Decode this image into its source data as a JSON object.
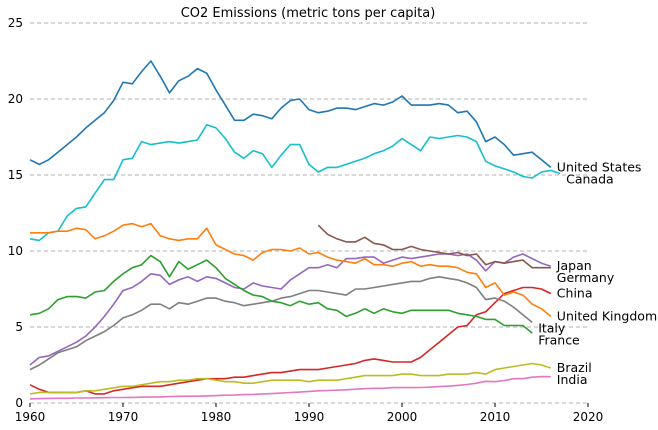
{
  "chart_data": {
    "type": "line",
    "title": "CO2 Emissions (metric tons per capita)",
    "xlabel": "",
    "ylabel": "",
    "xlim": [
      1960,
      2020
    ],
    "ylim": [
      0,
      25
    ],
    "x_ticks": [
      1960,
      1970,
      1980,
      1990,
      2000,
      2010,
      2020
    ],
    "y_ticks": [
      0,
      5,
      10,
      15,
      20,
      25
    ],
    "grid": "horizontal-dashed",
    "legend": "end-labels-right",
    "series": [
      {
        "name": "United States",
        "color": "#1f77b4",
        "x_start": 1960,
        "values": [
          16.0,
          15.7,
          16.0,
          16.5,
          17.0,
          17.5,
          18.1,
          18.6,
          19.1,
          19.9,
          21.1,
          21.0,
          21.8,
          22.5,
          21.5,
          20.4,
          21.2,
          21.5,
          22.0,
          21.7,
          20.6,
          19.6,
          18.6,
          18.6,
          19.0,
          18.9,
          18.7,
          19.4,
          19.9,
          20.0,
          19.3,
          19.1,
          19.2,
          19.4,
          19.4,
          19.3,
          19.5,
          19.7,
          19.6,
          19.8,
          20.2,
          19.6,
          19.6,
          19.6,
          19.7,
          19.6,
          19.1,
          19.2,
          18.5,
          17.2,
          17.5,
          17.0,
          16.3,
          16.4,
          16.5,
          16.0,
          15.5
        ]
      },
      {
        "name": "Canada",
        "color": "#17becf",
        "x_start": 1960,
        "values": [
          10.8,
          10.7,
          11.2,
          11.3,
          12.3,
          12.8,
          12.9,
          13.8,
          14.7,
          14.7,
          16.0,
          16.1,
          17.2,
          17.0,
          17.1,
          17.2,
          17.1,
          17.2,
          17.3,
          18.3,
          18.1,
          17.4,
          16.5,
          16.1,
          16.6,
          16.4,
          15.5,
          16.3,
          17.0,
          17.0,
          15.7,
          15.2,
          15.5,
          15.5,
          15.7,
          15.9,
          16.1,
          16.4,
          16.6,
          16.9,
          17.4,
          17.0,
          16.6,
          17.5,
          17.4,
          17.5,
          17.6,
          17.5,
          17.2,
          15.9,
          15.6,
          15.4,
          15.2,
          14.9,
          14.8,
          15.2,
          15.3,
          15.1
        ]
      },
      {
        "name": "Japan",
        "color": "#9467bd",
        "x_start": 1960,
        "values": [
          2.5,
          3.0,
          3.1,
          3.4,
          3.7,
          4.0,
          4.4,
          5.0,
          5.7,
          6.5,
          7.4,
          7.6,
          8.0,
          8.5,
          8.4,
          7.8,
          8.1,
          8.3,
          8.0,
          8.3,
          8.2,
          7.9,
          7.6,
          7.5,
          7.9,
          7.7,
          7.6,
          7.5,
          8.1,
          8.5,
          8.9,
          8.9,
          9.1,
          8.9,
          9.5,
          9.5,
          9.6,
          9.6,
          9.2,
          9.4,
          9.6,
          9.5,
          9.6,
          9.7,
          9.8,
          9.8,
          9.7,
          9.8,
          9.4,
          8.7,
          9.3,
          9.2,
          9.6,
          9.8,
          9.5,
          9.2,
          9.0
        ]
      },
      {
        "name": "Germany",
        "color": "#8c564b",
        "x_start": 1991,
        "values": [
          11.7,
          11.1,
          10.8,
          10.6,
          10.6,
          10.9,
          10.5,
          10.4,
          10.1,
          10.1,
          10.3,
          10.1,
          10.0,
          9.9,
          9.8,
          9.9,
          9.7,
          9.8,
          9.1,
          9.3,
          9.2,
          9.3,
          9.4,
          8.9,
          8.9,
          8.9
        ]
      },
      {
        "name": "China",
        "color": "#d62728",
        "x_start": 1960,
        "values": [
          1.2,
          0.9,
          0.7,
          0.7,
          0.7,
          0.7,
          0.8,
          0.6,
          0.6,
          0.8,
          0.9,
          1.0,
          1.1,
          1.1,
          1.1,
          1.2,
          1.3,
          1.4,
          1.5,
          1.6,
          1.6,
          1.6,
          1.7,
          1.7,
          1.8,
          1.9,
          2.0,
          2.0,
          2.1,
          2.2,
          2.2,
          2.2,
          2.3,
          2.4,
          2.5,
          2.6,
          2.8,
          2.9,
          2.8,
          2.7,
          2.7,
          2.7,
          3.0,
          3.5,
          4.0,
          4.5,
          5.0,
          5.1,
          5.8,
          6.0,
          6.6,
          7.2,
          7.4,
          7.6,
          7.6,
          7.5,
          7.2
        ]
      },
      {
        "name": "United Kingdom",
        "color": "#ff7f0e",
        "x_start": 1960,
        "values": [
          11.2,
          11.2,
          11.2,
          11.3,
          11.3,
          11.5,
          11.4,
          10.8,
          11.0,
          11.3,
          11.7,
          11.8,
          11.6,
          11.8,
          11.0,
          10.8,
          10.7,
          10.8,
          10.8,
          11.5,
          10.4,
          10.1,
          9.8,
          9.7,
          9.4,
          9.9,
          10.1,
          10.1,
          10.0,
          10.2,
          9.8,
          9.9,
          9.6,
          9.4,
          9.3,
          9.2,
          9.5,
          9.1,
          9.1,
          9.0,
          9.2,
          9.3,
          9.0,
          9.1,
          9.0,
          9.0,
          8.9,
          8.6,
          8.5,
          7.6,
          7.9,
          7.1,
          7.3,
          7.1,
          6.5,
          6.2,
          5.7
        ]
      },
      {
        "name": "Italy",
        "color": "#7f7f7f",
        "x_start": 1960,
        "values": [
          2.2,
          2.5,
          2.9,
          3.3,
          3.5,
          3.7,
          4.1,
          4.4,
          4.7,
          5.1,
          5.6,
          5.8,
          6.1,
          6.5,
          6.5,
          6.2,
          6.6,
          6.5,
          6.7,
          6.9,
          6.9,
          6.7,
          6.6,
          6.4,
          6.5,
          6.6,
          6.7,
          6.9,
          7.0,
          7.2,
          7.4,
          7.4,
          7.3,
          7.2,
          7.1,
          7.5,
          7.5,
          7.6,
          7.7,
          7.8,
          7.9,
          8.0,
          8.0,
          8.2,
          8.3,
          8.2,
          8.1,
          7.9,
          7.6,
          6.8,
          6.9,
          6.7,
          6.3,
          5.8,
          5.3
        ]
      },
      {
        "name": "France",
        "color": "#2ca02c",
        "x_start": 1960,
        "values": [
          5.8,
          5.9,
          6.2,
          6.8,
          7.0,
          7.0,
          6.9,
          7.3,
          7.4,
          8.0,
          8.5,
          8.9,
          9.1,
          9.7,
          9.3,
          8.3,
          9.3,
          8.8,
          9.1,
          9.4,
          8.9,
          8.2,
          7.8,
          7.4,
          7.1,
          7.0,
          6.7,
          6.6,
          6.4,
          6.7,
          6.5,
          6.6,
          6.2,
          6.1,
          5.7,
          5.9,
          6.2,
          5.9,
          6.2,
          6.0,
          5.9,
          6.1,
          6.1,
          6.1,
          6.1,
          6.1,
          5.9,
          5.8,
          5.7,
          5.5,
          5.5,
          5.1,
          5.1,
          5.1,
          4.6
        ]
      },
      {
        "name": "Brazil",
        "color": "#bcbd22",
        "x_start": 1960,
        "values": [
          0.6,
          0.7,
          0.7,
          0.7,
          0.7,
          0.7,
          0.8,
          0.8,
          0.9,
          1.0,
          1.1,
          1.1,
          1.2,
          1.3,
          1.4,
          1.4,
          1.5,
          1.5,
          1.6,
          1.6,
          1.5,
          1.4,
          1.4,
          1.3,
          1.3,
          1.4,
          1.5,
          1.5,
          1.5,
          1.5,
          1.4,
          1.5,
          1.5,
          1.5,
          1.6,
          1.7,
          1.8,
          1.8,
          1.8,
          1.8,
          1.9,
          1.9,
          1.8,
          1.8,
          1.8,
          1.9,
          1.9,
          1.9,
          2.0,
          1.9,
          2.2,
          2.3,
          2.4,
          2.5,
          2.6,
          2.5,
          2.3
        ]
      },
      {
        "name": "India",
        "color": "#e377c2",
        "x_start": 1960,
        "values": [
          0.27,
          0.29,
          0.3,
          0.31,
          0.31,
          0.33,
          0.33,
          0.34,
          0.35,
          0.36,
          0.36,
          0.37,
          0.38,
          0.39,
          0.4,
          0.42,
          0.44,
          0.45,
          0.45,
          0.47,
          0.49,
          0.51,
          0.52,
          0.55,
          0.56,
          0.6,
          0.62,
          0.65,
          0.69,
          0.72,
          0.76,
          0.8,
          0.82,
          0.84,
          0.87,
          0.91,
          0.94,
          0.97,
          0.97,
          1.01,
          1.01,
          1.01,
          1.02,
          1.04,
          1.08,
          1.11,
          1.16,
          1.22,
          1.3,
          1.43,
          1.4,
          1.48,
          1.6,
          1.6,
          1.7,
          1.74,
          1.73
        ]
      }
    ]
  }
}
